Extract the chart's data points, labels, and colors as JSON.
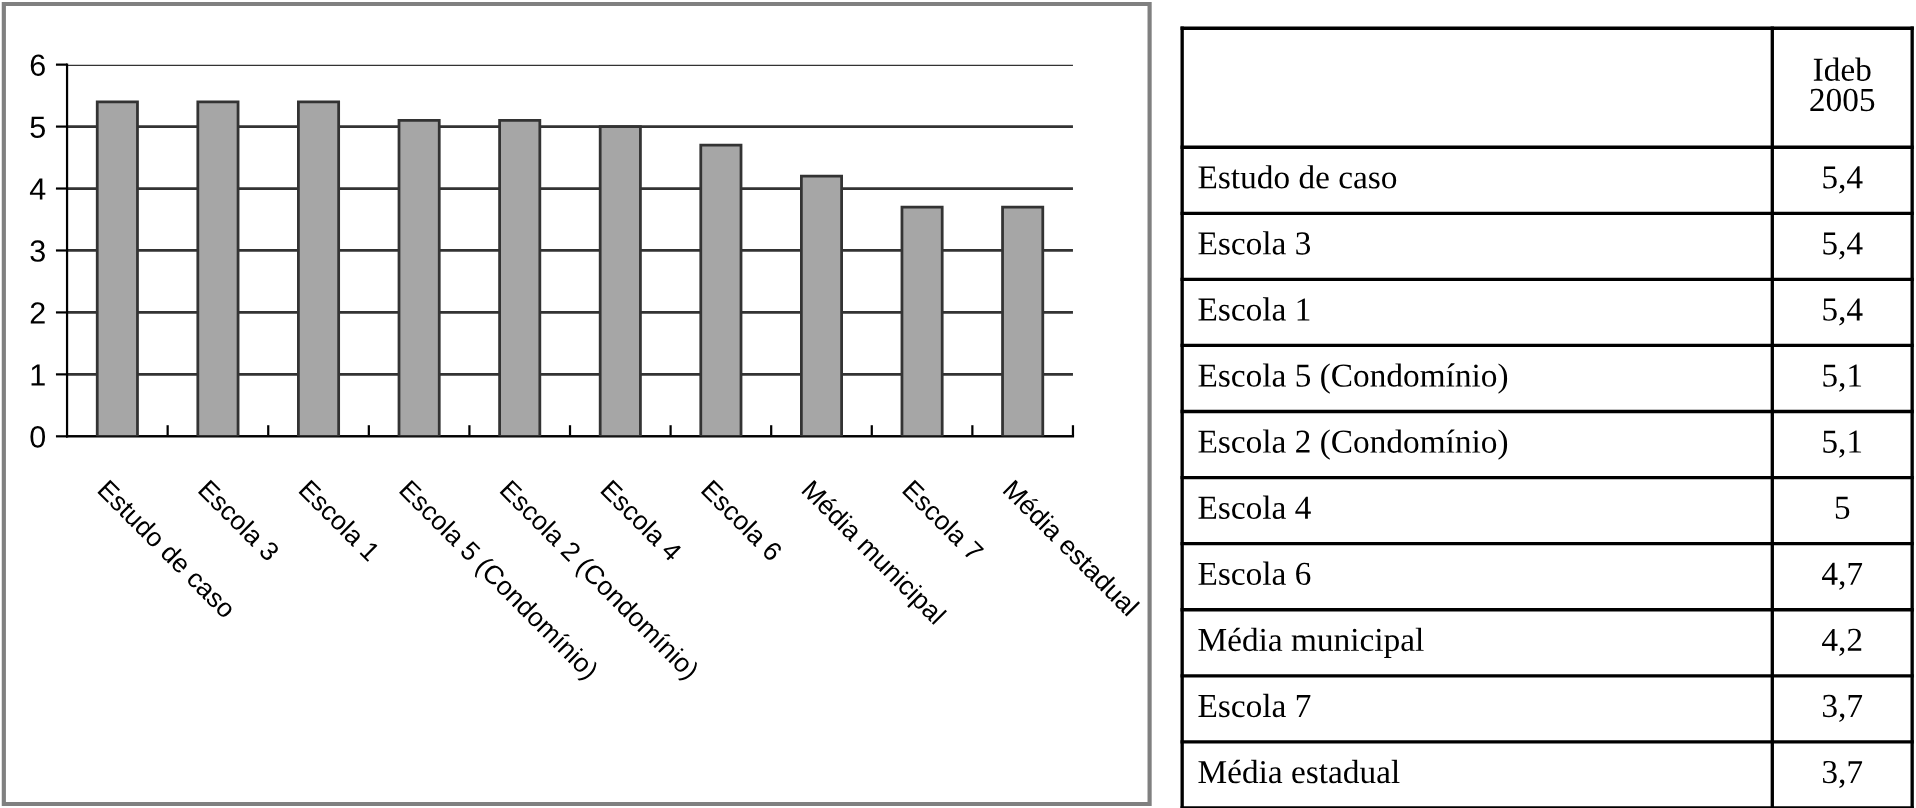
{
  "chart_data": [
    {
      "type": "bar",
      "categories": [
        "Estudo de caso",
        "Escola 3",
        "Escola 1",
        "Escola 5 (Condomínio)",
        "Escola 2 (Condomínio)",
        "Escola 4",
        "Escola 6",
        "Média municipal",
        "Escola 7",
        "Média estadual"
      ],
      "values": [
        5.4,
        5.4,
        5.4,
        5.1,
        5.1,
        5,
        4.7,
        4.2,
        3.7,
        3.7
      ],
      "color": "#a6a6a6",
      "ylim": [
        0,
        6
      ],
      "yticks": [
        0,
        1,
        2,
        3,
        4,
        5,
        6
      ],
      "grid": "y"
    },
    {
      "type": "other",
      "categories": [
        "Estudo de caso",
        "Escola 3",
        "Escola 1",
        "Escola 5 (Condomínio)",
        "Escola 2 (Condomínio)",
        "Escola 4",
        "Escola 6",
        "Média municipal",
        "Escola 7",
        "Média estadual"
      ],
      "value_labels": [
        "5,4",
        "5,4",
        "5,4",
        "5,1",
        "5,1",
        "5",
        "4,7",
        "4,2",
        "3,7",
        "3,7"
      ],
      "annotations": [
        "Ideb 2005"
      ]
    }
  ]
}
